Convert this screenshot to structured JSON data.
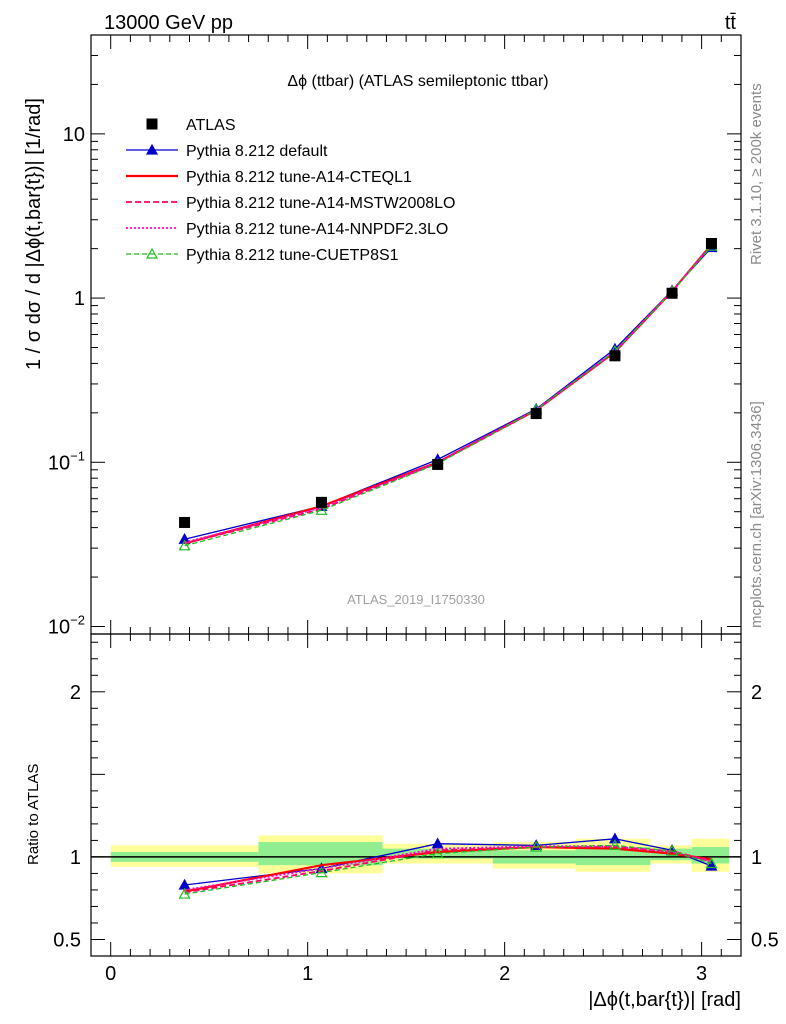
{
  "header": {
    "left": "13000 GeV pp",
    "right": "tt̄"
  },
  "side_text": {
    "rivet": "Rivet 3.1.10, ≥ 200k events",
    "mcplots": "mcplots.cern.ch [arXiv:1306.3436]"
  },
  "chart_data": [
    {
      "type": "line",
      "title": "Δϕ (ttbar) (ATLAS semileptonic ttbar)",
      "ylabel": "1 / σ dσ / d |Δϕ(t,bar{t})| [1/rad]",
      "yscale": "log",
      "ylim": [
        0.009,
        40
      ],
      "xlim": [
        -0.1,
        3.2
      ],
      "y_ticks": [
        {
          "value": 0.01,
          "label_base": "10",
          "label_exp": "−2"
        },
        {
          "value": 0.1,
          "label_base": "10",
          "label_exp": "−1"
        },
        {
          "value": 1,
          "label_base": "1",
          "label_exp": ""
        },
        {
          "value": 10,
          "label_base": "10",
          "label_exp": ""
        }
      ],
      "watermark": "ATLAS_2019_I1750330",
      "legend_position": "top-left",
      "x": [
        0.375,
        1.07,
        1.66,
        2.16,
        2.56,
        2.85,
        3.05
      ],
      "data": {
        "name": "ATLAS",
        "values": [
          0.043,
          0.057,
          0.097,
          0.198,
          0.445,
          1.07,
          2.15
        ],
        "color": "#000000"
      },
      "series": [
        {
          "name": "Pythia 8.212 default",
          "values": [
            0.034,
            0.054,
            0.104,
            0.211,
            0.49,
            1.11,
            2.03
          ],
          "color": "#0000cc",
          "dash": "",
          "marker": "triangle-filled",
          "width": 1.3
        },
        {
          "name": "Pythia 8.212 tune-A14-CTEQL1",
          "values": [
            0.032,
            0.054,
            0.1,
            0.208,
            0.47,
            1.1,
            2.12
          ],
          "color": "#ff0000",
          "dash": "",
          "marker": "none",
          "width": 2.2
        },
        {
          "name": "Pythia 8.212 tune-A14-MSTW2008LO",
          "values": [
            0.032,
            0.052,
            0.099,
            0.207,
            0.47,
            1.1,
            2.12
          ],
          "color": "#ff0066",
          "dash": "6,3",
          "marker": "none",
          "width": 1.8
        },
        {
          "name": "Pythia 8.212 tune-A14-NNPDF2.3LO",
          "values": [
            0.0325,
            0.053,
            0.1,
            0.209,
            0.475,
            1.1,
            2.1
          ],
          "color": "#ff00cc",
          "dash": "2,2",
          "marker": "none",
          "width": 1.8
        },
        {
          "name": "Pythia 8.212 tune-CUETP8S1",
          "values": [
            0.031,
            0.051,
            0.098,
            0.209,
            0.475,
            1.1,
            2.07
          ],
          "color": "#22bb22",
          "dash": "5,3",
          "marker": "triangle-open",
          "width": 1.3
        }
      ]
    },
    {
      "type": "line",
      "ylabel": "Ratio to ATLAS",
      "xlabel": "|Δϕ(t,bar{t})| [rad]",
      "ylim": [
        0.4,
        2.35
      ],
      "xlim": [
        -0.1,
        3.2
      ],
      "x_ticks": [
        0,
        1,
        2,
        3
      ],
      "y_ticks": [
        0.5,
        1,
        2
      ],
      "bins": [
        {
          "lo": 0.0,
          "hi": 0.75,
          "stat": [
            0.97,
            1.03
          ],
          "total": [
            0.94,
            1.07
          ]
        },
        {
          "lo": 0.75,
          "hi": 1.38,
          "stat": [
            0.95,
            1.09
          ],
          "total": [
            0.9,
            1.13
          ]
        },
        {
          "lo": 1.38,
          "hi": 1.94,
          "stat": [
            0.99,
            1.05
          ],
          "total": [
            0.96,
            1.08
          ]
        },
        {
          "lo": 1.94,
          "hi": 2.36,
          "stat": [
            0.96,
            1.04
          ],
          "total": [
            0.93,
            1.09
          ]
        },
        {
          "lo": 2.36,
          "hi": 2.74,
          "stat": [
            0.95,
            1.06
          ],
          "total": [
            0.91,
            1.11
          ]
        },
        {
          "lo": 2.74,
          "hi": 2.95,
          "stat": [
            0.98,
            1.05
          ],
          "total": [
            0.96,
            1.07
          ]
        },
        {
          "lo": 2.95,
          "hi": 3.14,
          "stat": [
            0.96,
            1.06
          ],
          "total": [
            0.91,
            1.11
          ]
        }
      ],
      "series": [
        {
          "name": "Pythia 8.212 default",
          "values": [
            0.83,
            0.93,
            1.08,
            1.07,
            1.11,
            1.04,
            0.945
          ]
        },
        {
          "name": "Pythia 8.212 tune-A14-CTEQL1",
          "values": [
            0.79,
            0.95,
            1.03,
            1.06,
            1.05,
            1.02,
            0.985
          ]
        },
        {
          "name": "Pythia 8.212 tune-A14-MSTW2008LO",
          "values": [
            0.785,
            0.915,
            1.04,
            1.06,
            1.06,
            1.035,
            0.975
          ]
        },
        {
          "name": "Pythia 8.212 tune-A14-NNPDF2.3LO",
          "values": [
            0.8,
            0.93,
            1.05,
            1.065,
            1.065,
            1.03,
            0.97
          ]
        },
        {
          "name": "Pythia 8.212 tune-CUETP8S1",
          "values": [
            0.775,
            0.905,
            1.02,
            1.06,
            1.07,
            1.035,
            0.96
          ]
        }
      ]
    }
  ]
}
